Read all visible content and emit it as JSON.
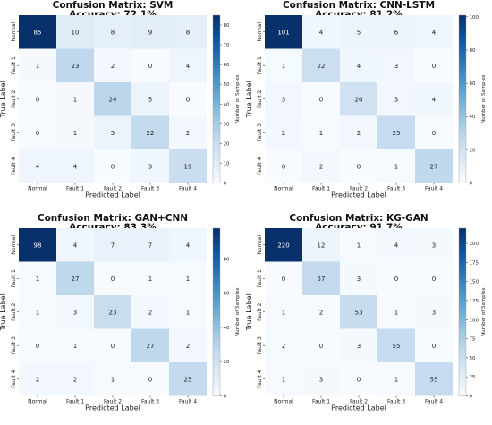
{
  "chart_data": [
    {
      "type": "heatmap",
      "title_line1": "Confusion Matrix: SVM",
      "title_line2": "Accuracy: 72.1%",
      "xlabel": "Predicted Label",
      "ylabel": "True Label",
      "colorbar_label": "Number of Samples",
      "x_categories": [
        "Normal",
        "Fault 1",
        "Fault 2",
        "Fault 3",
        "Fault 4"
      ],
      "y_categories": [
        "Normal",
        "Fault 1",
        "Fault 2",
        "Fault 3",
        "Fault 4"
      ],
      "values": [
        [
          85,
          10,
          8,
          9,
          8
        ],
        [
          1,
          23,
          2,
          0,
          4
        ],
        [
          0,
          1,
          24,
          5,
          0
        ],
        [
          0,
          1,
          5,
          22,
          2
        ],
        [
          4,
          4,
          0,
          3,
          19
        ]
      ],
      "colorbar_ticks": [
        0,
        10,
        20,
        30,
        40,
        50,
        60,
        70,
        80
      ],
      "vmin": 0,
      "vmax": 85
    },
    {
      "type": "heatmap",
      "title_line1": "Confusion Matrix: CNN-LSTM",
      "title_line2": "Accuracy: 81.2%",
      "xlabel": "Predicted Label",
      "ylabel": "True Label",
      "colorbar_label": "Number of Samples",
      "x_categories": [
        "Normal",
        "Fault 1",
        "Fault 2",
        "Fault 3",
        "Fault 4"
      ],
      "y_categories": [
        "Normal",
        "Fault 1",
        "Fault 2",
        "Fault 3",
        "Fault 4"
      ],
      "values": [
        [
          101,
          4,
          5,
          6,
          4
        ],
        [
          1,
          22,
          4,
          3,
          0
        ],
        [
          3,
          0,
          20,
          3,
          4
        ],
        [
          2,
          1,
          2,
          25,
          0
        ],
        [
          0,
          2,
          0,
          1,
          27
        ]
      ],
      "colorbar_ticks": [
        0,
        20,
        40,
        60,
        80,
        100
      ],
      "vmin": 0,
      "vmax": 101
    },
    {
      "type": "heatmap",
      "title_line1": "Confusion Matrix: GAN+CNN",
      "title_line2": "Accuracy: 83.3%",
      "xlabel": "Predicted Label",
      "ylabel": "True Label",
      "colorbar_label": "Number of Samples",
      "x_categories": [
        "Normal",
        "Fault 1",
        "Fault 2",
        "Fault 3",
        "Fault 4"
      ],
      "y_categories": [
        "Normal",
        "Fault 1",
        "Fault 2",
        "Fault 3",
        "Fault 4"
      ],
      "values": [
        [
          98,
          4,
          7,
          7,
          4
        ],
        [
          1,
          27,
          0,
          1,
          1
        ],
        [
          1,
          3,
          23,
          2,
          1
        ],
        [
          0,
          1,
          0,
          27,
          2
        ],
        [
          2,
          2,
          1,
          0,
          25
        ]
      ],
      "colorbar_ticks": [
        0,
        20,
        40,
        60,
        80
      ],
      "vmin": 0,
      "vmax": 98
    },
    {
      "type": "heatmap",
      "title_line1": "Confusion Matrix: KG-GAN",
      "title_line2": "Accuracy: 91.7%",
      "xlabel": "Predicted Label",
      "ylabel": "True Label",
      "colorbar_label": "Number of Samples",
      "x_categories": [
        "Normal",
        "Fault 1",
        "Fault 2",
        "Fault 3",
        "Fault 4"
      ],
      "y_categories": [
        "Normal",
        "Fault 1",
        "Fault 2",
        "Fault 3",
        "Fault 4"
      ],
      "values": [
        [
          220,
          12,
          1,
          4,
          3
        ],
        [
          0,
          57,
          3,
          0,
          0
        ],
        [
          1,
          2,
          53,
          1,
          3
        ],
        [
          2,
          0,
          3,
          55,
          0
        ],
        [
          1,
          3,
          0,
          1,
          55
        ]
      ],
      "colorbar_ticks": [
        0,
        25,
        50,
        75,
        100,
        125,
        150,
        175,
        200
      ],
      "vmin": 0,
      "vmax": 220
    }
  ]
}
